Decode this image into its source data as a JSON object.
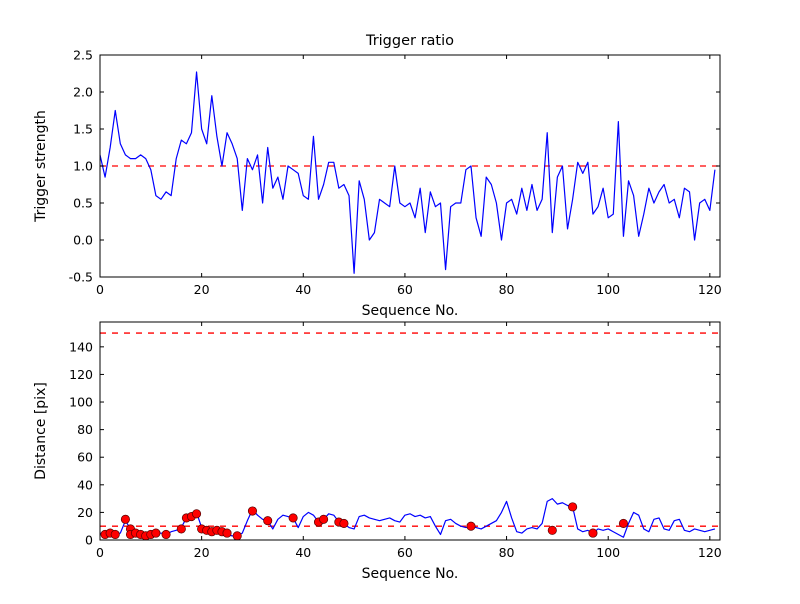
{
  "figure": {
    "background": "#ffffff",
    "axis_color": "#000000",
    "line_color": "#0000ff",
    "dash_color": "#ff0000",
    "marker_color": "#ff0000"
  },
  "chart_data": [
    {
      "type": "line",
      "name": "trigger-ratio-plot",
      "title": "Trigger ratio",
      "xlabel": "Sequence No.",
      "ylabel": "Trigger strength",
      "xlim": [
        0,
        122
      ],
      "ylim": [
        -0.5,
        2.5
      ],
      "grid": false,
      "xtick_values": [
        0,
        20,
        40,
        60,
        80,
        100,
        120
      ],
      "xtick_labels": [
        "0",
        "20",
        "40",
        "60",
        "80",
        "100",
        "120"
      ],
      "ytick_values": [
        -0.5,
        0.0,
        0.5,
        1.0,
        1.5,
        2.0,
        2.5
      ],
      "ytick_labels": [
        "-0.5",
        "0.0",
        "0.5",
        "1.0",
        "1.5",
        "2.0",
        "2.5"
      ],
      "dashed_hlines": [
        1.0
      ],
      "values": [
        1.15,
        0.85,
        1.25,
        1.75,
        1.3,
        1.15,
        1.1,
        1.1,
        1.15,
        1.1,
        0.95,
        0.6,
        0.55,
        0.65,
        0.6,
        1.1,
        1.35,
        1.3,
        1.45,
        2.27,
        1.5,
        1.3,
        1.95,
        1.4,
        1.0,
        1.45,
        1.3,
        1.1,
        0.4,
        1.1,
        0.95,
        1.15,
        0.5,
        1.25,
        0.7,
        0.85,
        0.55,
        1.0,
        0.95,
        0.9,
        0.6,
        0.55,
        1.4,
        0.55,
        0.75,
        1.05,
        1.05,
        0.7,
        0.75,
        0.6,
        -0.45,
        0.8,
        0.55,
        0.0,
        0.1,
        0.55,
        0.5,
        0.45,
        1.0,
        0.5,
        0.45,
        0.5,
        0.3,
        0.7,
        0.1,
        0.65,
        0.45,
        0.5,
        -0.4,
        0.45,
        0.5,
        0.5,
        0.95,
        1.0,
        0.3,
        0.05,
        0.85,
        0.75,
        0.5,
        0.0,
        0.5,
        0.55,
        0.35,
        0.7,
        0.4,
        0.75,
        0.4,
        0.55,
        1.45,
        0.1,
        0.85,
        1.0,
        0.15,
        0.55,
        1.05,
        0.9,
        1.05,
        0.35,
        0.45,
        0.7,
        0.3,
        0.35,
        1.6,
        0.05,
        0.8,
        0.6,
        0.05,
        0.35,
        0.7,
        0.5,
        0.65,
        0.75,
        0.5,
        0.55,
        0.3,
        0.7,
        0.65,
        0.0,
        0.5,
        0.55,
        0.4,
        0.95
      ]
    },
    {
      "type": "line+scatter",
      "name": "distance-plot",
      "title": "",
      "xlabel": "Sequence No.",
      "ylabel": "Distance [pix]",
      "xlim": [
        0,
        122
      ],
      "ylim": [
        0,
        158
      ],
      "grid": false,
      "xtick_values": [
        0,
        20,
        40,
        60,
        80,
        100,
        120
      ],
      "xtick_labels": [
        "0",
        "20",
        "40",
        "60",
        "80",
        "100",
        "120"
      ],
      "ytick_values": [
        0,
        20,
        40,
        60,
        80,
        100,
        120,
        140
      ],
      "ytick_labels": [
        "0",
        "20",
        "40",
        "60",
        "80",
        "100",
        "120",
        "140"
      ],
      "dashed_hlines": [
        150,
        10
      ],
      "values": [
        5,
        4,
        6,
        4,
        5,
        14,
        8,
        5,
        4,
        3,
        5,
        4,
        5,
        4,
        6,
        7,
        9,
        16,
        17,
        20,
        9,
        7,
        6,
        8,
        6,
        4,
        3,
        3,
        5,
        14,
        22,
        18,
        15,
        14,
        8,
        15,
        18,
        17,
        16,
        9,
        17,
        20,
        18,
        13,
        15,
        19,
        18,
        13,
        12,
        9,
        8,
        17,
        18,
        16,
        15,
        14,
        15,
        16,
        14,
        13,
        18,
        19,
        17,
        18,
        16,
        17,
        10,
        4,
        14,
        15,
        12,
        10,
        9,
        10,
        9,
        8,
        10,
        12,
        14,
        20,
        28,
        16,
        6,
        5,
        8,
        9,
        8,
        12,
        28,
        30,
        26,
        27,
        25,
        24,
        8,
        6,
        7,
        5,
        8,
        7,
        8,
        6,
        4,
        2,
        12,
        20,
        18,
        8,
        6,
        15,
        16,
        8,
        7,
        14,
        15,
        7,
        6,
        8,
        7,
        6,
        7,
        8
      ],
      "scatter": [
        [
          1,
          4
        ],
        [
          2,
          5
        ],
        [
          3,
          4
        ],
        [
          5,
          15
        ],
        [
          6,
          8
        ],
        [
          6,
          4
        ],
        [
          7,
          5
        ],
        [
          8,
          4
        ],
        [
          9,
          3
        ],
        [
          10,
          4
        ],
        [
          11,
          5
        ],
        [
          13,
          4
        ],
        [
          16,
          8
        ],
        [
          17,
          16
        ],
        [
          18,
          17
        ],
        [
          19,
          19
        ],
        [
          20,
          8
        ],
        [
          21,
          7
        ],
        [
          22,
          6
        ],
        [
          23,
          7
        ],
        [
          24,
          6
        ],
        [
          25,
          5
        ],
        [
          27,
          3
        ],
        [
          30,
          21
        ],
        [
          33,
          14
        ],
        [
          38,
          16
        ],
        [
          43,
          13
        ],
        [
          44,
          15
        ],
        [
          47,
          13
        ],
        [
          48,
          12
        ],
        [
          73,
          10
        ],
        [
          89,
          7
        ],
        [
          93,
          24
        ],
        [
          97,
          5
        ],
        [
          103,
          12
        ]
      ]
    }
  ]
}
